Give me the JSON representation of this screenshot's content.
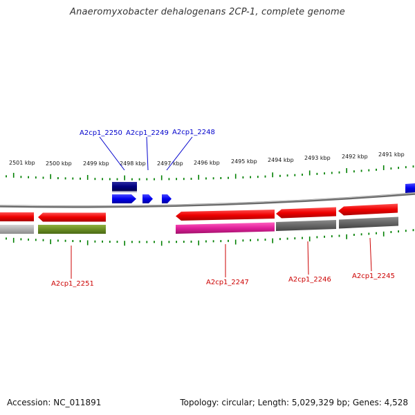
{
  "title": "Anaeromyxobacter dehalogenans 2CP-1, complete genome",
  "footer": {
    "accession": "Accession: NC_011891",
    "summary": "Topology: circular; Length: 5,029,329 bp; Genes: 4,528"
  },
  "kbp_labels": [
    "2501 kbp",
    "2500 kbp",
    "2499 kbp",
    "2498 kbp",
    "2497 kbp",
    "2496 kbp",
    "2495 kbp",
    "2494 kbp",
    "2493 kbp",
    "2492 kbp",
    "2491 kbp"
  ],
  "top_genes": [
    "A2cp1_2250",
    "A2cp1_2249",
    "A2cp1_2248"
  ],
  "bottom_genes": [
    "A2cp1_2251",
    "A2cp1_2247",
    "A2cp1_2246",
    "A2cp1_2245"
  ],
  "colors": {
    "forward_gene": "#0000ee",
    "forward_rna": "#000080",
    "reverse_gene": "#ee0000",
    "backbone": "#808080",
    "tick": "#008000",
    "top_label": "#0000cc",
    "bottom_label": "#cc0000",
    "cog_green": "#6b8e23",
    "cog_magenta": "#e0209a",
    "cog_gray": "#666666",
    "cog_lightgray": "#b0b0b0"
  }
}
